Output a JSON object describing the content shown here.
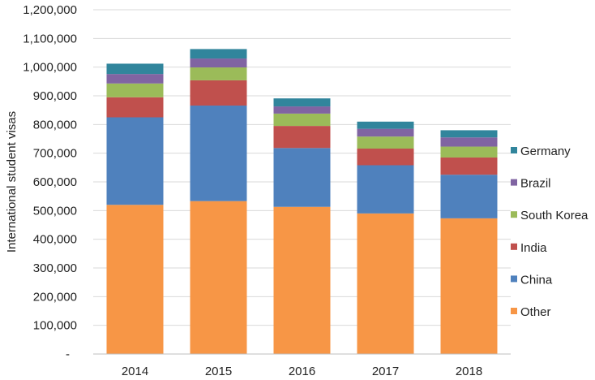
{
  "chart_data": {
    "type": "bar",
    "stacked": true,
    "title": "",
    "xlabel": "",
    "ylabel": "International student visas",
    "categories": [
      "2014",
      "2015",
      "2016",
      "2017",
      "2018"
    ],
    "ylim": [
      0,
      1200000
    ],
    "yticks": [
      0,
      100000,
      200000,
      300000,
      400000,
      500000,
      600000,
      700000,
      800000,
      900000,
      1000000,
      1100000,
      1200000
    ],
    "ytick_labels": [
      "-",
      "100,000",
      "200,000",
      "300,000",
      "400,000",
      "500,000",
      "600,000",
      "700,000",
      "800,000",
      "900,000",
      "1,000,000",
      "1,100,000",
      "1,200,000"
    ],
    "grid": true,
    "legend_position": "right",
    "series": [
      {
        "name": "Other",
        "color": "#F79646",
        "values": [
          520000,
          533000,
          513000,
          490000,
          473000
        ]
      },
      {
        "name": "China",
        "color": "#4F81BD",
        "values": [
          305000,
          333000,
          205000,
          168000,
          152000
        ]
      },
      {
        "name": "India",
        "color": "#C0504D",
        "values": [
          70000,
          88000,
          77000,
          58000,
          60000
        ]
      },
      {
        "name": "South Korea",
        "color": "#9BBB59",
        "values": [
          48000,
          45000,
          43000,
          42000,
          38000
        ]
      },
      {
        "name": "Brazil",
        "color": "#8064A2",
        "values": [
          33000,
          31000,
          25000,
          27000,
          32000
        ]
      },
      {
        "name": "Germany",
        "color": "#31859C",
        "values": [
          36000,
          33000,
          28000,
          25000,
          25000
        ]
      }
    ],
    "legend_order": [
      "Germany",
      "Brazil",
      "South Korea",
      "India",
      "China",
      "Other"
    ]
  }
}
